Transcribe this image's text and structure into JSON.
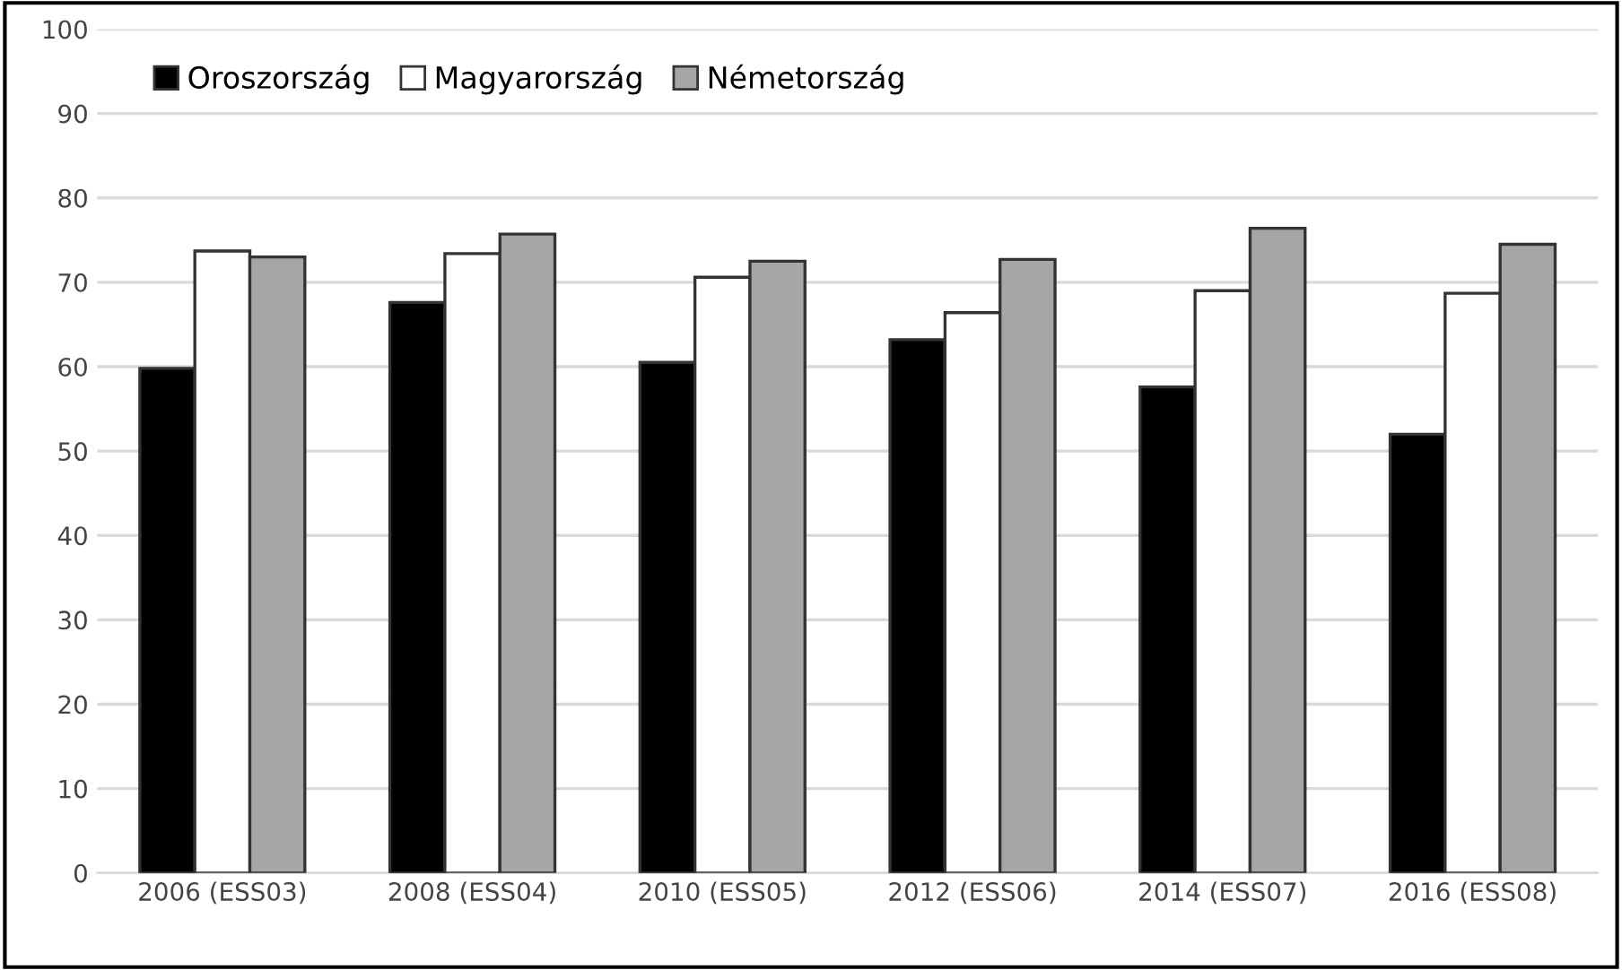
{
  "chart_data": {
    "type": "bar",
    "categories": [
      "2006 (ESS03)",
      "2008 (ESS04)",
      "2010 (ESS05)",
      "2012 (ESS06)",
      "2014 (ESS07)",
      "2016 (ESS08)"
    ],
    "series": [
      {
        "name": "Oroszország",
        "color": "#000000",
        "values": [
          59.8,
          67.6,
          60.5,
          63.2,
          57.6,
          52.0
        ]
      },
      {
        "name": "Magyarország",
        "color": "#ffffff",
        "values": [
          73.7,
          73.4,
          70.6,
          66.4,
          69.0,
          68.7
        ]
      },
      {
        "name": "Németország",
        "color": "#a6a6a6",
        "values": [
          73.0,
          75.7,
          72.5,
          72.7,
          76.4,
          74.5
        ]
      }
    ],
    "ylim": [
      0,
      100
    ],
    "yticks": [
      0,
      10,
      20,
      30,
      40,
      50,
      60,
      70,
      80,
      90,
      100
    ],
    "grid": "y",
    "legend": "top left"
  }
}
